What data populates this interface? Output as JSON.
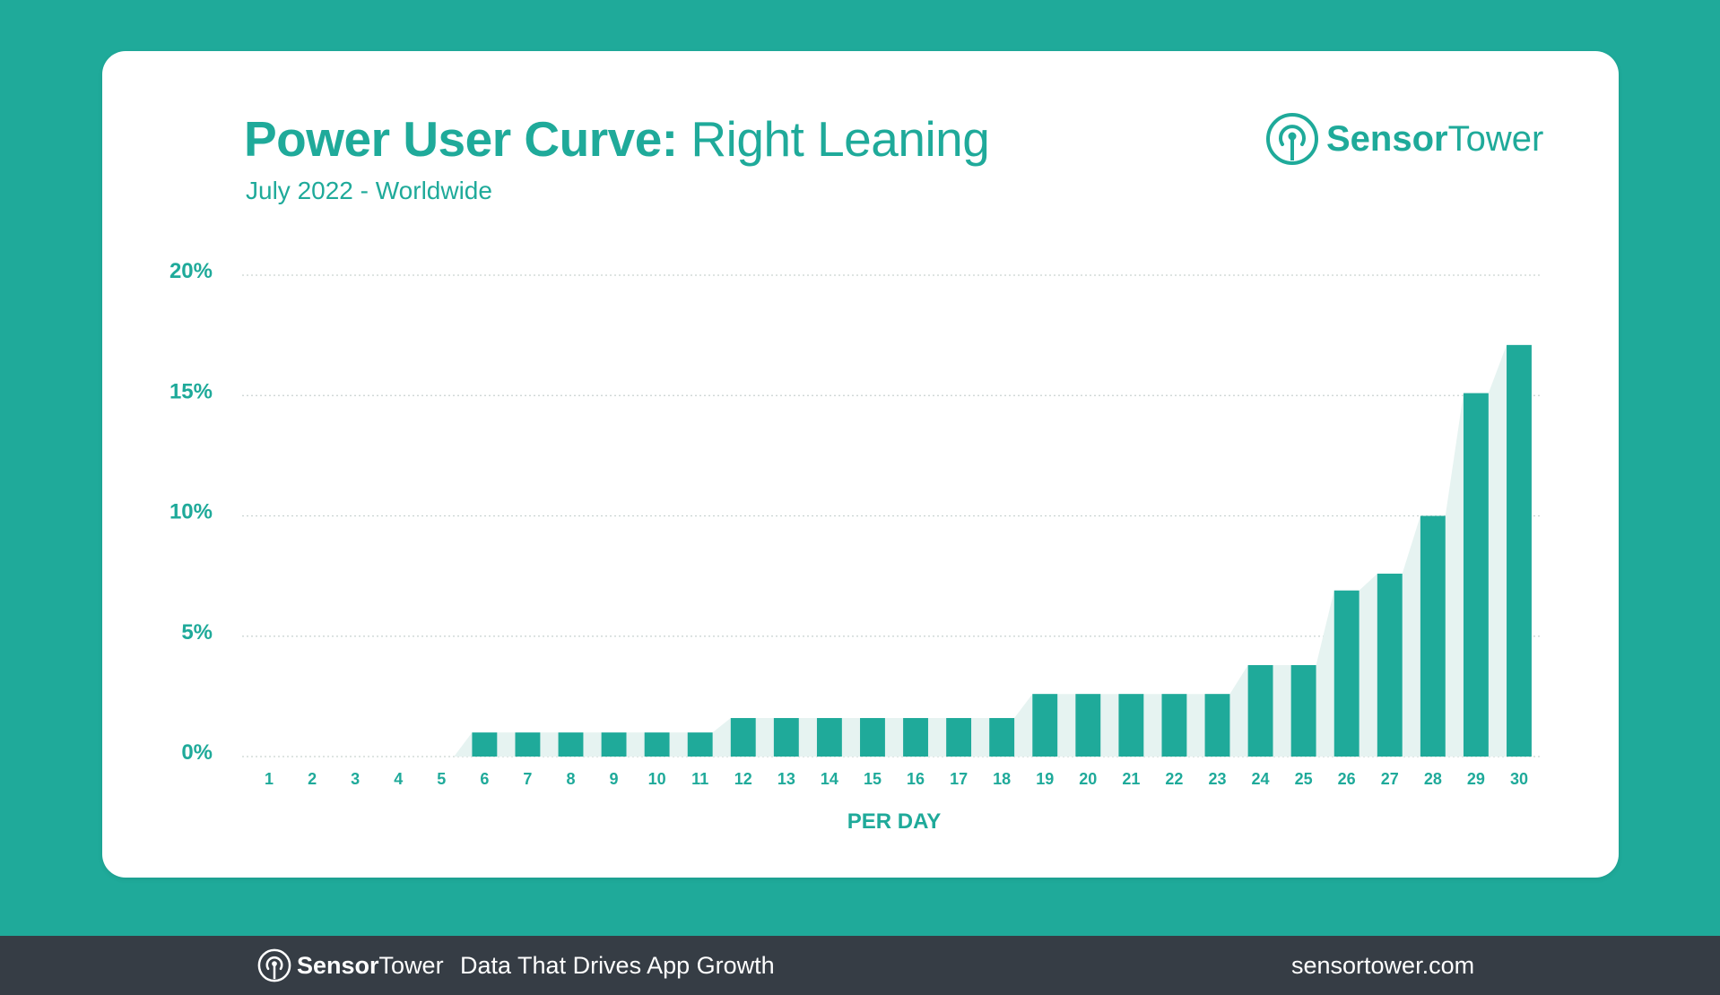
{
  "header": {
    "title_strong": "Power User Curve:",
    "title_light": "Right Leaning",
    "subtitle": "July 2022 - Worldwide"
  },
  "brand": {
    "name_bold": "Sensor",
    "name_light": "Tower",
    "logo_icon": "sensor-tower-logo-icon"
  },
  "footer": {
    "tagline": "Data That Drives App Growth",
    "website": "sensortower.com"
  },
  "colors": {
    "teal": "#1faa9a",
    "area": "#e6f3f1",
    "footer_bg": "#363d45",
    "grid": "#c9d3d1"
  },
  "chart_data": {
    "type": "bar",
    "xlabel": "PER DAY",
    "ylabel": "",
    "ylim": [
      0,
      20
    ],
    "grid": true,
    "y_ticks": [
      {
        "value": 0,
        "label": "0%"
      },
      {
        "value": 5,
        "label": "5%"
      },
      {
        "value": 10,
        "label": "10%"
      },
      {
        "value": 15,
        "label": "15%"
      },
      {
        "value": 20,
        "label": "20%"
      }
    ],
    "categories": [
      "1",
      "2",
      "3",
      "4",
      "5",
      "6",
      "7",
      "8",
      "9",
      "10",
      "11",
      "12",
      "13",
      "14",
      "15",
      "16",
      "17",
      "18",
      "19",
      "20",
      "21",
      "22",
      "23",
      "24",
      "25",
      "26",
      "27",
      "28",
      "29",
      "30"
    ],
    "values": [
      0,
      0,
      0,
      0,
      0,
      1.0,
      1.0,
      1.0,
      1.0,
      1.0,
      1.0,
      1.6,
      1.6,
      1.6,
      1.6,
      1.6,
      1.6,
      1.6,
      2.6,
      2.6,
      2.6,
      2.6,
      2.6,
      3.8,
      3.8,
      6.9,
      7.6,
      10.0,
      15.1,
      17.1
    ]
  }
}
